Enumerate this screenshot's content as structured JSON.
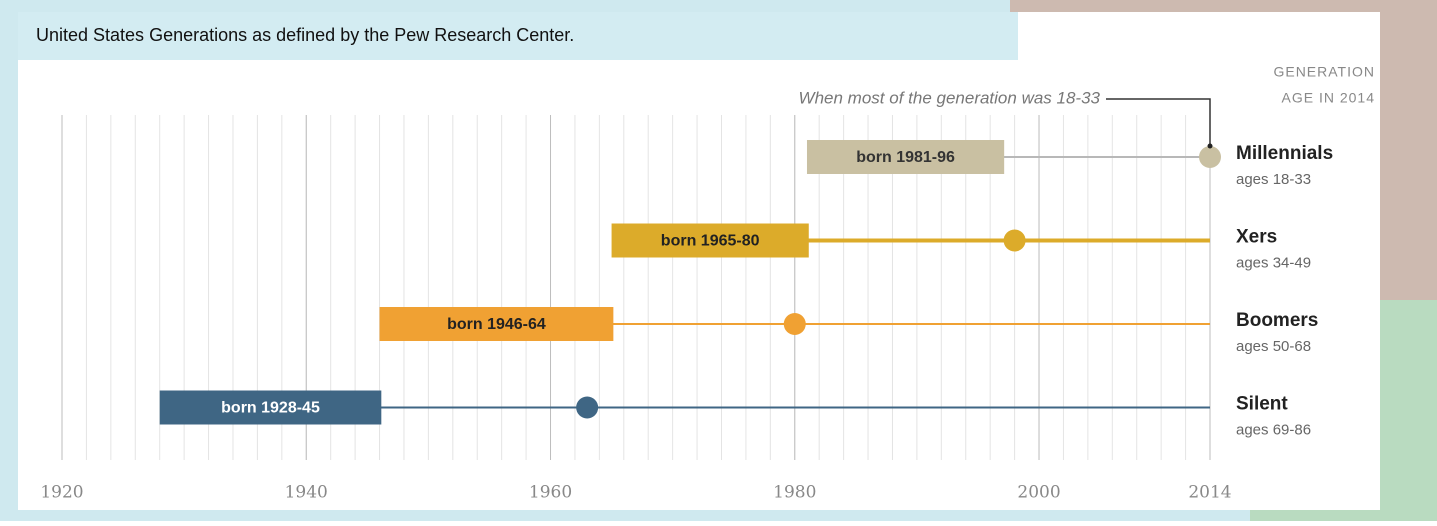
{
  "chart_data": {
    "type": "timeline",
    "title": "United States Generations as defined by the Pew Research Center.",
    "annotation": "When most of the generation was 18-33",
    "header": [
      "GENERATION",
      "AGE IN 2014"
    ],
    "xlim": [
      1920,
      2014
    ],
    "xticks": [
      1920,
      1940,
      1960,
      1980,
      2000,
      2014
    ],
    "minor_xtick_step": 2,
    "grid": true,
    "series": [
      {
        "name": "Millennials",
        "ages": "ages 18-33",
        "label": "born 1981-96",
        "start": 1981,
        "end": 1996,
        "dot": 2014,
        "color": "#c9c0a2",
        "line_color": "#b8b8b8"
      },
      {
        "name": "Xers",
        "ages": "ages 34-49",
        "label": "born 1965-80",
        "start": 1965,
        "end": 1980,
        "dot": 1998,
        "color": "#dcab2a",
        "line_color": "#dcab2a"
      },
      {
        "name": "Boomers",
        "ages": "ages 50-68",
        "label": "born 1946-64",
        "start": 1946,
        "end": 1964,
        "dot": 1980,
        "color": "#f0a133",
        "line_color": "#f0a133"
      },
      {
        "name": "Silent",
        "ages": "ages 69-86",
        "label": "born 1928-45",
        "start": 1928,
        "end": 1945,
        "dot": 1963,
        "color": "#3f6684",
        "line_color": "#3f6684"
      }
    ]
  }
}
